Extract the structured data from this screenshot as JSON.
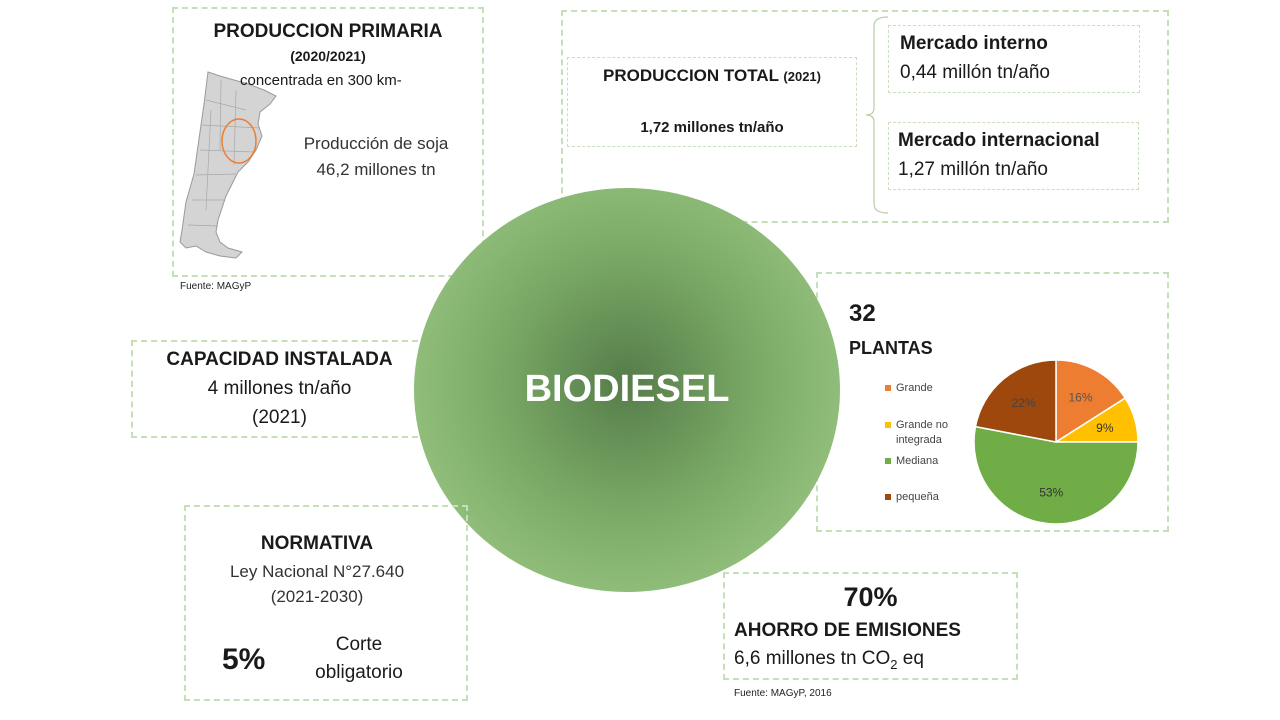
{
  "center": {
    "title": "BIODIESEL"
  },
  "primary": {
    "title": "PRODUCCION PRIMARIA",
    "period": "(2020/2021)",
    "concentrated": "concentrada en 300 km-",
    "soy_label": "Producción de soja",
    "soy_value": "46,2 millones tn",
    "source": "Fuente: MAGyP"
  },
  "total": {
    "title": "PRODUCCION TOTAL",
    "year": "(2021)",
    "value": "1,72 millones  tn/año",
    "internal_title": "Mercado interno",
    "internal_value": "0,44 millón tn/año",
    "international_title": "Mercado internacional",
    "international_value": "1,27 millón tn/año"
  },
  "capacity": {
    "title": "CAPACIDAD INSTALADA",
    "value": "4 millones tn/año",
    "year": "(2021)"
  },
  "plants": {
    "count": "32",
    "label": "PLANTAS"
  },
  "chart_data": {
    "type": "pie",
    "legend_position": "left",
    "slices": [
      {
        "name": "Grande",
        "value": 16,
        "label": "16%",
        "color": "#ed7d31"
      },
      {
        "name": "Grande no integrada",
        "value": 9,
        "label": "9%",
        "color": "#ffc000"
      },
      {
        "name": "Mediana",
        "value": 53,
        "label": "53%",
        "color": "#70ad47"
      },
      {
        "name": "pequeña",
        "value": 22,
        "label": "22%",
        "color": "#9e480e"
      }
    ]
  },
  "normativa": {
    "title": "NORMATIVA",
    "law": "Ley Nacional N°27.640",
    "period": "(2021-2030)",
    "pct": "5%",
    "cut_line1": "Corte",
    "cut_line2": "obligatorio"
  },
  "emissions": {
    "pct": "70%",
    "title": "AHORRO DE EMISIONES",
    "value_prefix": "6,6 millones tn CO",
    "value_sub": "2",
    "value_suffix": " eq",
    "source": "Fuente: MAGyP, 2016"
  },
  "colors": {
    "dashed_border": "#c5dfb6",
    "circle": "#8fbd79"
  }
}
